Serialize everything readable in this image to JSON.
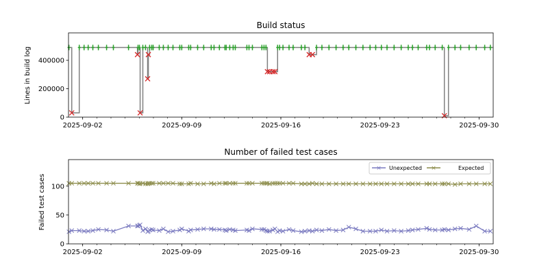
{
  "chart_data": [
    {
      "type": "line",
      "title": "Build status",
      "xlabel": "",
      "ylabel": "Lines in build log",
      "x_origin": "2025-09-01",
      "x_unit": "days since x_origin",
      "xlim": [
        0,
        30
      ],
      "ylim": [
        0,
        593000
      ],
      "xticks": [
        1,
        8,
        15,
        22,
        29
      ],
      "xtick_labels": [
        "2025-09-02",
        "2025-09-09",
        "2025-09-16",
        "2025-09-23",
        "2025-09-30"
      ],
      "yticks": [
        0,
        200000,
        400000
      ],
      "ytick_labels": [
        "0",
        "200000",
        "400000"
      ],
      "drawstyle": "steps-post",
      "colors": {
        "line": "#808080",
        "pass": "#2ca02c",
        "fail": "#d62728"
      }
    },
    {
      "type": "line",
      "title": "Number of failed test cases",
      "xlabel": "",
      "ylabel": "Failed test cases",
      "xlim": [
        0,
        30
      ],
      "ylim": [
        0,
        146
      ],
      "xticks": [
        1,
        8,
        15,
        22,
        29
      ],
      "xtick_labels": [
        "2025-09-02",
        "2025-09-09",
        "2025-09-16",
        "2025-09-23",
        "2025-09-30"
      ],
      "yticks": [
        0,
        50,
        100
      ],
      "ytick_labels": [
        "0",
        "50",
        "100"
      ],
      "legend": "top-right",
      "series": [
        {
          "name": "Unexpected",
          "color": "#7b7bc0"
        },
        {
          "name": "Expected",
          "color": "#8c8c4a"
        }
      ]
    }
  ],
  "builds_columns": [
    "day",
    "lines",
    "failed",
    "unexpected",
    "expected"
  ],
  "builds": [
    [
      0.03,
      490000,
      0,
      21,
      105
    ],
    [
      0.23,
      30000,
      1,
      23,
      105
    ],
    [
      0.76,
      490000,
      0,
      23,
      105
    ],
    [
      1.1,
      490000,
      0,
      22,
      105
    ],
    [
      1.39,
      490000,
      0,
      22,
      105
    ],
    [
      1.72,
      490000,
      0,
      23,
      105
    ],
    [
      2.11,
      490000,
      0,
      25,
      105
    ],
    [
      2.69,
      490000,
      0,
      24,
      105
    ],
    [
      3.17,
      490000,
      0,
      22,
      105
    ],
    [
      4.24,
      490000,
      0,
      31,
      105
    ],
    [
      4.87,
      440000,
      1,
      31,
      105
    ],
    [
      4.91,
      490000,
      0,
      31,
      105
    ],
    [
      5.01,
      490000,
      0,
      32,
      104
    ],
    [
      5.06,
      30000,
      1,
      33,
      105
    ],
    [
      5.25,
      490000,
      0,
      23,
      105
    ],
    [
      5.44,
      490000,
      0,
      26,
      104
    ],
    [
      5.59,
      270000,
      1,
      21,
      104
    ],
    [
      5.64,
      440000,
      1,
      22,
      105
    ],
    [
      5.73,
      490000,
      0,
      24,
      105
    ],
    [
      5.88,
      490000,
      0,
      25,
      105
    ],
    [
      5.98,
      490000,
      0,
      24,
      105
    ],
    [
      6.41,
      490000,
      0,
      23,
      105
    ],
    [
      6.7,
      490000,
      0,
      26,
      105
    ],
    [
      7.04,
      490000,
      0,
      21,
      105
    ],
    [
      7.38,
      490000,
      0,
      22,
      105
    ],
    [
      7.86,
      490000,
      0,
      24,
      104
    ],
    [
      8.0,
      490000,
      0,
      26,
      104
    ],
    [
      8.49,
      490000,
      0,
      22,
      104
    ],
    [
      8.63,
      490000,
      0,
      24,
      105
    ],
    [
      9.12,
      490000,
      0,
      25,
      104
    ],
    [
      9.55,
      490000,
      0,
      26,
      104
    ],
    [
      10.08,
      490000,
      0,
      26,
      105
    ],
    [
      10.28,
      490000,
      0,
      25,
      104
    ],
    [
      10.66,
      490000,
      0,
      25,
      105
    ],
    [
      11.05,
      490000,
      0,
      24,
      105
    ],
    [
      11.14,
      490000,
      0,
      23,
      105
    ],
    [
      11.39,
      490000,
      0,
      25,
      105
    ],
    [
      11.63,
      490000,
      0,
      24,
      105
    ],
    [
      11.78,
      490000,
      0,
      23,
      105
    ],
    [
      12.6,
      490000,
      0,
      24,
      105
    ],
    [
      12.75,
      490000,
      0,
      23,
      105
    ],
    [
      12.99,
      490000,
      0,
      26,
      105
    ],
    [
      13.66,
      490000,
      0,
      25,
      105
    ],
    [
      13.81,
      490000,
      0,
      25,
      105
    ],
    [
      13.95,
      490000,
      0,
      23,
      105
    ],
    [
      14.05,
      320000,
      1,
      22,
      105
    ],
    [
      14.2,
      320000,
      1,
      22,
      104
    ],
    [
      14.44,
      320000,
      1,
      24,
      105
    ],
    [
      14.58,
      320000,
      1,
      26,
      105
    ],
    [
      14.77,
      490000,
      0,
      21,
      105
    ],
    [
      14.91,
      490000,
      0,
      23,
      105
    ],
    [
      15.15,
      490000,
      0,
      22,
      105
    ],
    [
      15.58,
      490000,
      0,
      25,
      105
    ],
    [
      15.87,
      490000,
      0,
      23,
      105
    ],
    [
      16.45,
      490000,
      0,
      21,
      104
    ],
    [
      16.7,
      490000,
      0,
      22,
      104
    ],
    [
      17.0,
      440000,
      1,
      23,
      104
    ],
    [
      17.23,
      440000,
      1,
      22,
      105
    ],
    [
      17.52,
      490000,
      0,
      24,
      104
    ],
    [
      17.9,
      490000,
      0,
      23,
      104
    ],
    [
      18.4,
      490000,
      0,
      25,
      104
    ],
    [
      18.9,
      490000,
      0,
      23,
      104
    ],
    [
      19.4,
      490000,
      0,
      24,
      104
    ],
    [
      19.8,
      490000,
      0,
      29,
      104
    ],
    [
      20.3,
      490000,
      0,
      26,
      104
    ],
    [
      20.8,
      490000,
      0,
      22,
      104
    ],
    [
      21.3,
      490000,
      0,
      22,
      104
    ],
    [
      21.7,
      490000,
      0,
      22,
      104
    ],
    [
      22.1,
      490000,
      0,
      24,
      104
    ],
    [
      22.5,
      490000,
      0,
      22,
      104
    ],
    [
      23.0,
      490000,
      0,
      23,
      104
    ],
    [
      23.5,
      490000,
      0,
      22,
      104
    ],
    [
      24.0,
      490000,
      0,
      23,
      104
    ],
    [
      24.3,
      490000,
      0,
      24,
      104
    ],
    [
      24.7,
      490000,
      0,
      25,
      104
    ],
    [
      25.3,
      490000,
      0,
      27,
      104
    ],
    [
      25.5,
      490000,
      0,
      25,
      104
    ],
    [
      25.9,
      490000,
      0,
      24,
      104
    ],
    [
      26.4,
      490000,
      0,
      24,
      104
    ],
    [
      26.55,
      10000,
      1,
      25,
      104
    ],
    [
      26.84,
      490000,
      0,
      24,
      104
    ],
    [
      27.3,
      490000,
      0,
      26,
      103
    ],
    [
      27.7,
      490000,
      0,
      27,
      104
    ],
    [
      28.3,
      490000,
      0,
      25,
      104
    ],
    [
      28.8,
      490000,
      0,
      31,
      104
    ],
    [
      29.4,
      490000,
      0,
      22,
      104
    ],
    [
      29.8,
      490000,
      0,
      22,
      104
    ]
  ]
}
